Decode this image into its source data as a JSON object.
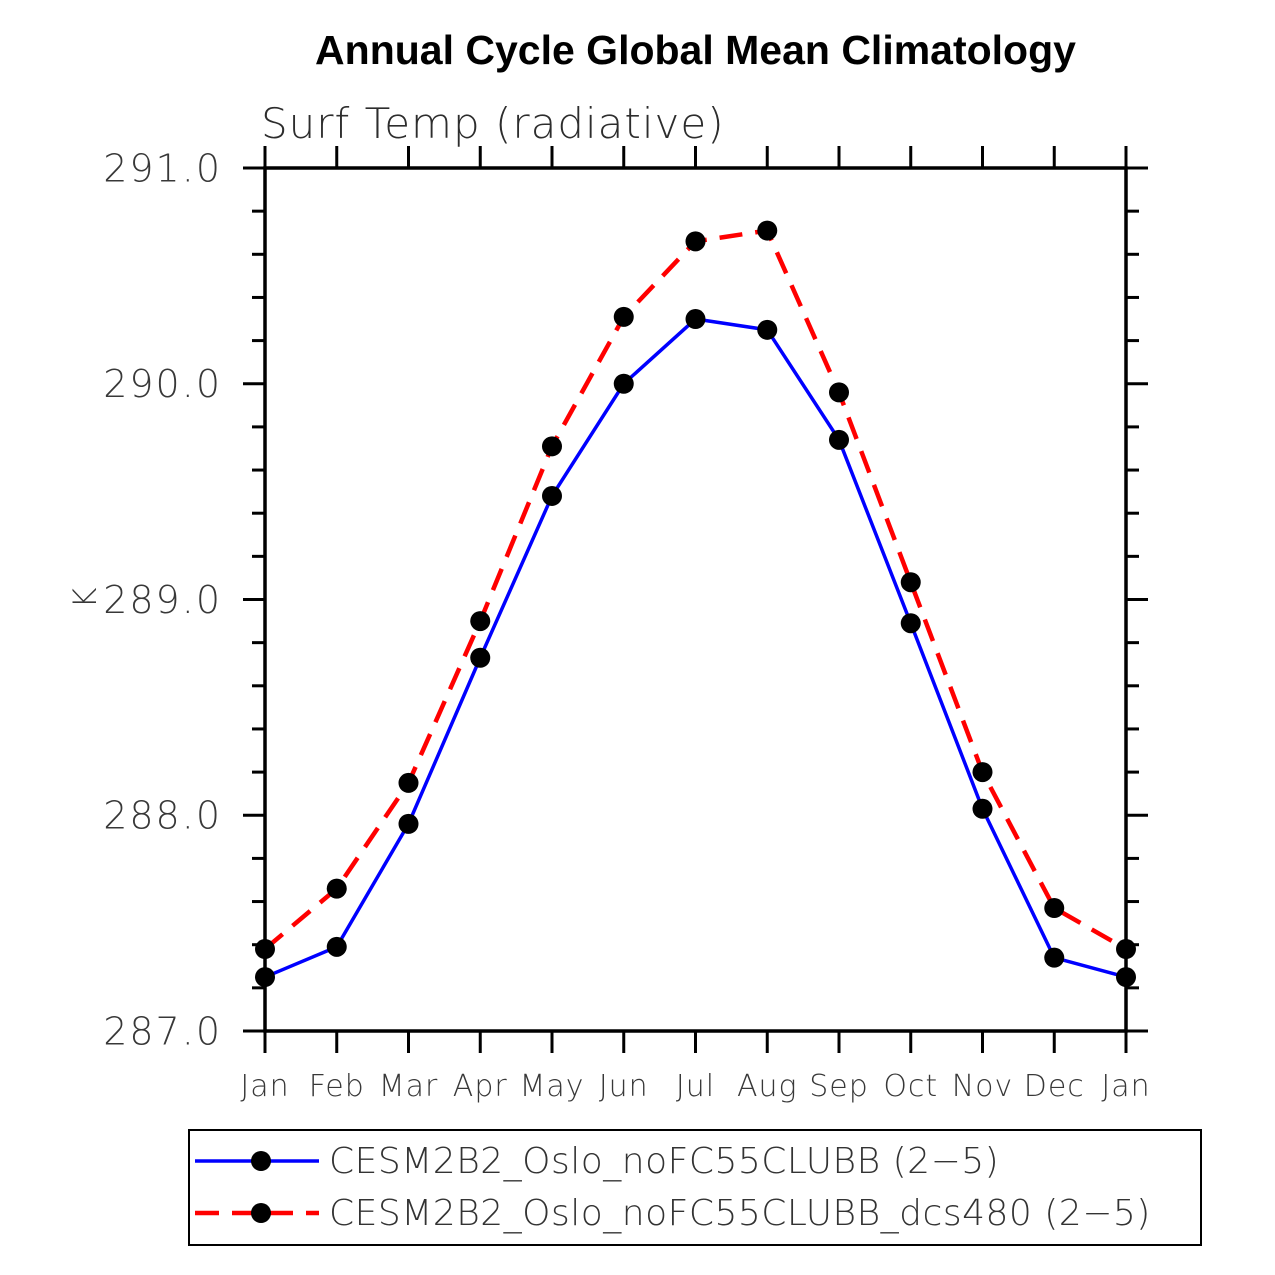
{
  "title": "Annual Cycle Global Mean Climatology",
  "subtitle": "Surf Temp (radiative)",
  "y_axis_label": "K",
  "chart_data": {
    "type": "line",
    "title": "Annual Cycle Global Mean Climatology",
    "subtitle": "Surf Temp (radiative)",
    "ylabel": "K",
    "xlabel": "",
    "x_labels": [
      "Jan",
      "Feb",
      "Mar",
      "Apr",
      "May",
      "Jun",
      "Jul",
      "Aug",
      "Sep",
      "Oct",
      "Nov",
      "Dec",
      "Jan"
    ],
    "ylim": [
      287.0,
      291.0
    ],
    "ytick_labels": [
      "287.0",
      "288.0",
      "289.0",
      "290.0",
      "291.0"
    ],
    "ytick_major_step": 1.0,
    "ytick_minor_step": 0.2,
    "grid": false,
    "frame": "box-with-outward-ticks",
    "legend_position": "bottom",
    "axis_color": "#000000",
    "series": [
      {
        "name": "CESM2B2_Oslo_noFC55CLUBB (2−5)",
        "line_style": "solid",
        "color": "#0000ff",
        "marker": "filled-circle",
        "marker_color": "#000000",
        "values": [
          287.25,
          287.39,
          287.96,
          288.73,
          289.48,
          290.0,
          290.3,
          290.25,
          289.74,
          288.89,
          288.03,
          287.34,
          287.25
        ]
      },
      {
        "name": "CESM2B2_Oslo_noFC55CLUBB_dcs480 (2−5)",
        "line_style": "dashed",
        "color": "#ff0000",
        "marker": "filled-circle",
        "marker_color": "#000000",
        "values": [
          287.38,
          287.66,
          288.15,
          288.9,
          289.71,
          290.31,
          290.66,
          290.71,
          289.96,
          289.08,
          288.2,
          287.57,
          287.38
        ]
      }
    ]
  }
}
